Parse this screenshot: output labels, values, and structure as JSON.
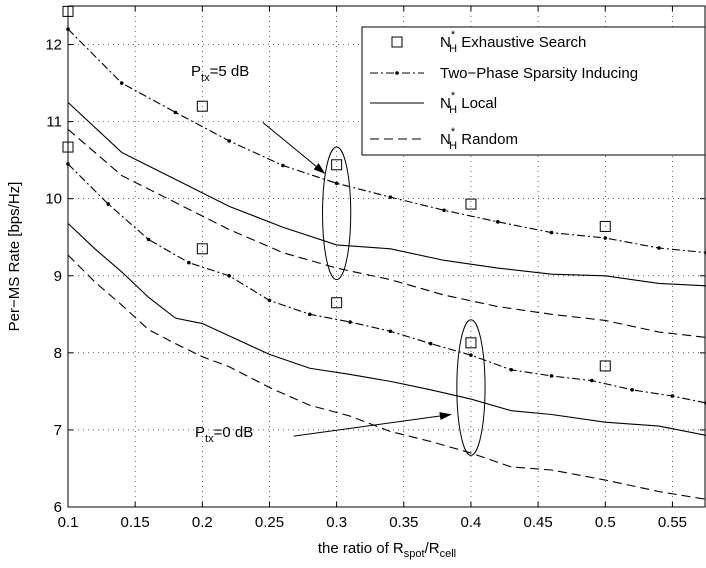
{
  "chart_data": {
    "type": "line",
    "xlabel": {
      "base": "the ratio of R",
      "sub1": "spot",
      "mid": "/R",
      "sub2": "cell"
    },
    "ylabel": "Per−MS Rate [bps/Hz]",
    "xlim": [
      0.1,
      0.575
    ],
    "ylim": [
      6,
      12.5
    ],
    "xticks": [
      0.1,
      0.15,
      0.2,
      0.25,
      0.3,
      0.35,
      0.4,
      0.45,
      0.5,
      0.55
    ],
    "xtick_labels": [
      "0.1",
      "0.15",
      "0.2",
      "0.25",
      "0.3",
      "0.35",
      "0.4",
      "0.45",
      "0.5",
      "0.55"
    ],
    "yticks": [
      6,
      7,
      8,
      9,
      10,
      11,
      12
    ],
    "ytick_labels": [
      "6",
      "7",
      "8",
      "9",
      "10",
      "11",
      "12"
    ],
    "grid": true,
    "legend_position": "top-right",
    "legend": [
      {
        "style": "square",
        "base": "N",
        "sup": "*",
        "sub": "H",
        "text": " Exhaustive Search"
      },
      {
        "style": "dashdot",
        "base": "",
        "sup": "",
        "sub": "",
        "text": "Two−Phase Sparsity Inducing"
      },
      {
        "style": "solid",
        "base": "N",
        "sup": "*",
        "sub": "H",
        "text": " Local"
      },
      {
        "style": "dashed",
        "base": "N",
        "sup": "*",
        "sub": "H",
        "text": " Random"
      }
    ],
    "series": [
      {
        "group": "5 dB",
        "style": "square",
        "x": [
          0.1,
          0.2,
          0.3,
          0.4,
          0.5
        ],
        "y": [
          12.43,
          11.2,
          10.44,
          9.93,
          9.64
        ]
      },
      {
        "group": "5 dB",
        "style": "dashdot",
        "x": [
          0.1,
          0.14,
          0.18,
          0.22,
          0.26,
          0.3,
          0.34,
          0.38,
          0.42,
          0.46,
          0.5,
          0.54,
          0.575
        ],
        "y": [
          12.2,
          11.5,
          11.12,
          10.75,
          10.43,
          10.2,
          10.02,
          9.85,
          9.7,
          9.56,
          9.49,
          9.36,
          9.3
        ]
      },
      {
        "group": "5 dB",
        "style": "solid",
        "x": [
          0.1,
          0.14,
          0.18,
          0.22,
          0.26,
          0.3,
          0.34,
          0.38,
          0.42,
          0.46,
          0.5,
          0.54,
          0.575
        ],
        "y": [
          11.25,
          10.6,
          10.25,
          9.9,
          9.63,
          9.4,
          9.35,
          9.2,
          9.1,
          9.02,
          9.0,
          8.9,
          8.87
        ]
      },
      {
        "group": "5 dB",
        "style": "dashed",
        "x": [
          0.1,
          0.14,
          0.18,
          0.22,
          0.26,
          0.3,
          0.34,
          0.38,
          0.42,
          0.46,
          0.5,
          0.54,
          0.575
        ],
        "y": [
          10.9,
          10.3,
          9.95,
          9.6,
          9.3,
          9.1,
          8.95,
          8.75,
          8.6,
          8.5,
          8.42,
          8.27,
          8.2
        ]
      },
      {
        "group": "0 dB",
        "style": "square",
        "x": [
          0.1,
          0.2,
          0.3,
          0.4,
          0.5
        ],
        "y": [
          10.67,
          9.35,
          8.65,
          8.13,
          7.83
        ]
      },
      {
        "group": "0 dB",
        "style": "dashdot",
        "x": [
          0.1,
          0.13,
          0.16,
          0.19,
          0.22,
          0.25,
          0.28,
          0.31,
          0.34,
          0.37,
          0.4,
          0.43,
          0.46,
          0.49,
          0.52,
          0.55,
          0.575
        ],
        "y": [
          10.45,
          9.93,
          9.47,
          9.17,
          9.0,
          8.68,
          8.5,
          8.4,
          8.28,
          8.12,
          7.97,
          7.78,
          7.7,
          7.64,
          7.52,
          7.44,
          7.35
        ]
      },
      {
        "group": "0 dB",
        "style": "solid",
        "x": [
          0.1,
          0.12,
          0.14,
          0.16,
          0.18,
          0.2,
          0.22,
          0.25,
          0.28,
          0.31,
          0.34,
          0.37,
          0.4,
          0.43,
          0.46,
          0.5,
          0.54,
          0.575
        ],
        "y": [
          9.68,
          9.35,
          9.05,
          8.72,
          8.45,
          8.38,
          8.22,
          7.98,
          7.8,
          7.72,
          7.63,
          7.52,
          7.4,
          7.25,
          7.2,
          7.1,
          7.05,
          6.93
        ]
      },
      {
        "group": "0 dB",
        "style": "dashed",
        "x": [
          0.1,
          0.12,
          0.14,
          0.16,
          0.18,
          0.2,
          0.22,
          0.25,
          0.28,
          0.31,
          0.34,
          0.37,
          0.4,
          0.43,
          0.46,
          0.5,
          0.54,
          0.575
        ],
        "y": [
          9.27,
          8.92,
          8.62,
          8.3,
          8.12,
          7.95,
          7.82,
          7.55,
          7.32,
          7.18,
          6.98,
          6.85,
          6.7,
          6.52,
          6.48,
          6.35,
          6.2,
          6.1
        ]
      }
    ],
    "annotations": [
      {
        "base": "P",
        "sub": "tx",
        "rest": "=5 dB",
        "ellipse": {
          "cx": 0.3,
          "cy": 9.81,
          "rx": 0.0105,
          "ry": 0.86
        },
        "arrow_from": [
          0.245,
          10.99
        ],
        "arrow_to": [
          0.291,
          10.33
        ]
      },
      {
        "base": "P",
        "sub": "tx",
        "rest": "=0 dB",
        "ellipse": {
          "cx": 0.4,
          "cy": 7.55,
          "rx": 0.0105,
          "ry": 0.88
        },
        "arrow_from": [
          0.268,
          6.92
        ],
        "arrow_to": [
          0.385,
          7.2
        ]
      }
    ]
  }
}
